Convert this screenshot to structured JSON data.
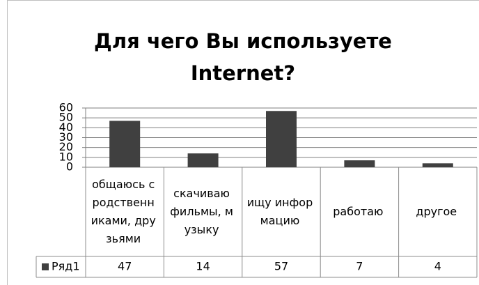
{
  "chart_data": {
    "type": "bar",
    "title": "Для чего Вы используете Internet?",
    "categories": [
      "общаюсь с родственниками, друзьями",
      "скачиваю фильмы, музыку",
      "ищу информацию",
      "работаю",
      "другое"
    ],
    "series": [
      {
        "name": "Ряд1",
        "color": "#404040",
        "values": [
          47,
          14,
          57,
          7,
          4
        ]
      }
    ],
    "ylim": [
      0,
      60
    ],
    "yticks": [
      0,
      10,
      20,
      30,
      40,
      50,
      60
    ],
    "grid": true,
    "data_table": true
  }
}
